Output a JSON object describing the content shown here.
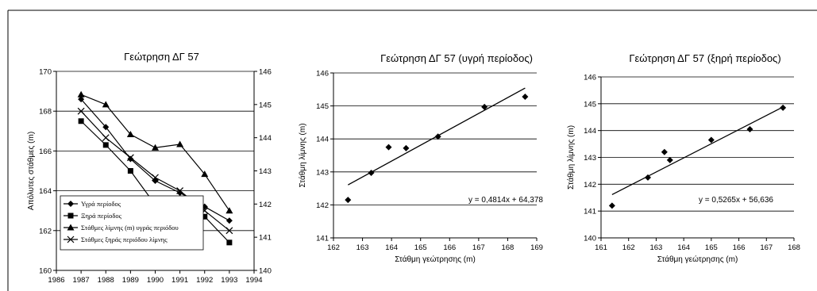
{
  "chart_data": [
    {
      "type": "line",
      "title": "Γεώτρηση ΔΓ 57",
      "ylabel": "Απόλυτες στάθμες (m)",
      "xlim": [
        1986,
        1994
      ],
      "xticks": [
        "1986",
        "1987",
        "1988",
        "1989",
        "1990",
        "1991",
        "1992",
        "1993",
        "1994"
      ],
      "ylim_left": [
        160,
        170
      ],
      "yticks_left": [
        "160",
        "162",
        "164",
        "166",
        "168",
        "170"
      ],
      "ylim_right": [
        140,
        146
      ],
      "yticks_right": [
        "140",
        "141",
        "142",
        "143",
        "144",
        "145",
        "146"
      ],
      "grid": true,
      "legend_position": "bottom-left",
      "series": [
        {
          "name": "Υγρά περίοδος",
          "axis": "left",
          "marker": "diamond",
          "x": [
            1987,
            1988,
            1989,
            1990,
            1991,
            1992,
            1993
          ],
          "values": [
            168.6,
            167.2,
            165.6,
            164.5,
            163.9,
            163.2,
            162.5
          ]
        },
        {
          "name": "Ξηρά περίοδος",
          "axis": "left",
          "marker": "square",
          "x": [
            1987,
            1988,
            1989,
            1990,
            1991,
            1992,
            1993
          ],
          "values": [
            167.5,
            166.3,
            165.0,
            163.3,
            163.5,
            162.7,
            161.4
          ]
        },
        {
          "name": "Στάθμες λίμνης (m) υγράς περιόδου",
          "axis": "right",
          "marker": "triangle",
          "x": [
            1987,
            1988,
            1989,
            1990,
            1991,
            1992,
            1993
          ],
          "values": [
            145.3,
            145.0,
            144.1,
            143.7,
            143.8,
            142.9,
            141.8
          ]
        },
        {
          "name": "Στάθμες ξηράς περιόδου λίμνης",
          "axis": "right",
          "marker": "x",
          "x": [
            1987,
            1988,
            1989,
            1990,
            1991,
            1992,
            1993
          ],
          "values": [
            144.8,
            144.0,
            143.4,
            142.8,
            142.4,
            141.8,
            141.2
          ]
        }
      ]
    },
    {
      "type": "scatter",
      "title": "Γεώτρηση   ΔΓ 57 (υγρή περίοδος)",
      "xlabel": "Στάθμη γεώτρησης (m)",
      "ylabel": "Στάθμη λίμνης (m)",
      "xlim": [
        162,
        169
      ],
      "xticks": [
        "162",
        "163",
        "164",
        "165",
        "166",
        "167",
        "168",
        "169"
      ],
      "ylim": [
        141,
        146
      ],
      "yticks": [
        "141",
        "142",
        "143",
        "144",
        "145",
        "146"
      ],
      "grid": true,
      "trendline": {
        "slope": 0.4814,
        "intercept": 64.378,
        "x_range": [
          162.5,
          168.6
        ]
      },
      "equation": "y = 0,4814x + 64,378",
      "points": {
        "x": [
          162.5,
          163.3,
          163.9,
          164.5,
          165.6,
          167.2,
          168.6
        ],
        "y": [
          142.15,
          142.97,
          143.75,
          143.72,
          144.07,
          144.97,
          145.28
        ]
      }
    },
    {
      "type": "scatter",
      "title": "Γεώτρηση   ΔΓ 57 (ξηρή περίοδος)",
      "xlabel": "Στάθμη γεώτρησης (m)",
      "ylabel": "Στάθμη λίμνης (m)",
      "xlim": [
        161,
        168
      ],
      "xticks": [
        "161",
        "162",
        "163",
        "164",
        "165",
        "166",
        "167",
        "168"
      ],
      "ylim": [
        140,
        146
      ],
      "yticks": [
        "140",
        "141",
        "142",
        "143",
        "144",
        "145",
        "146"
      ],
      "grid": true,
      "trendline": {
        "slope": 0.5265,
        "intercept": 56.636,
        "x_range": [
          161.4,
          167.6
        ]
      },
      "equation": "y = 0,5265x + 56,636",
      "points": {
        "x": [
          161.4,
          162.7,
          163.3,
          163.5,
          165.0,
          166.4,
          167.6
        ],
        "y": [
          141.2,
          142.25,
          143.2,
          142.9,
          143.65,
          144.05,
          144.85
        ]
      }
    }
  ]
}
